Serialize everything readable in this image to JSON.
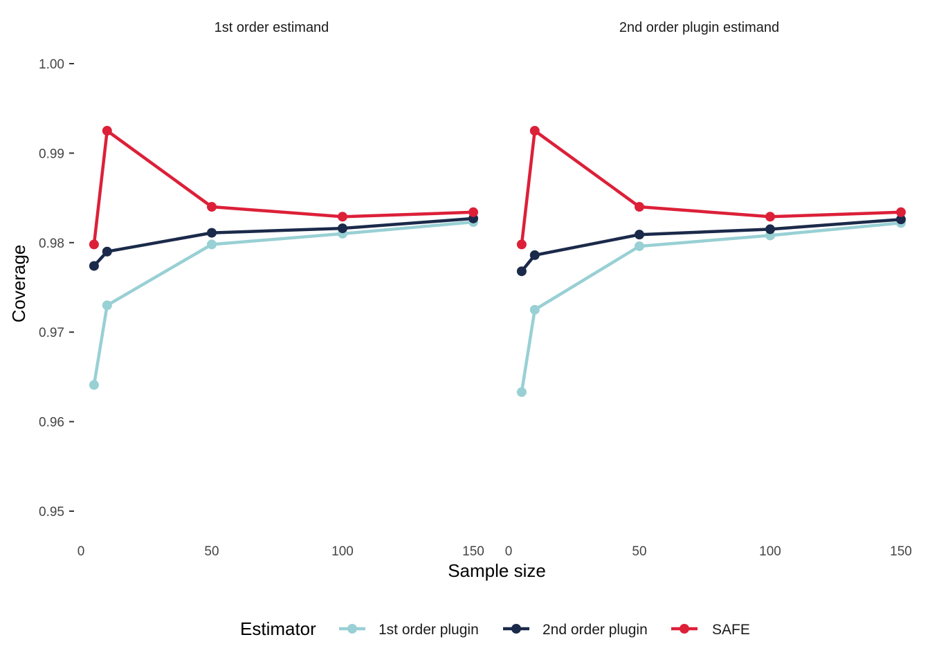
{
  "chart_data": {
    "type": "line",
    "xlabel": "Sample size",
    "ylabel": "Coverage",
    "xlim": [
      0,
      150
    ],
    "ylim": [
      0.95,
      1.0
    ],
    "x_ticks": [
      0,
      50,
      100,
      150
    ],
    "x_tick_labels": [
      "0",
      "50",
      "100",
      "150"
    ],
    "y_ticks": [
      0.95,
      0.96,
      0.97,
      0.98,
      0.99,
      1.0
    ],
    "y_tick_labels": [
      "0.95",
      "0.96",
      "0.97",
      "0.98",
      "0.99",
      "1.00"
    ],
    "grid": false,
    "legend": {
      "title": "Estimator",
      "placement": "bottom",
      "entries": [
        {
          "name": "1st order plugin",
          "color": "#98D0D4"
        },
        {
          "name": "2nd order plugin",
          "color": "#1B2A4A"
        },
        {
          "name": "SAFE",
          "color": "#DC2038"
        }
      ]
    },
    "panels": [
      {
        "title": "1st order estimand",
        "x": [
          5,
          10,
          50,
          100,
          150
        ],
        "series": [
          {
            "name": "1st order plugin",
            "values": [
              0.9641,
              0.973,
              0.9798,
              0.981,
              0.9823
            ]
          },
          {
            "name": "2nd order plugin",
            "values": [
              0.9774,
              0.979,
              0.9811,
              0.9816,
              0.9827
            ]
          },
          {
            "name": "SAFE",
            "values": [
              0.9798,
              0.9925,
              0.984,
              0.9829,
              0.9834
            ]
          }
        ]
      },
      {
        "title": "2nd order plugin estimand",
        "x": [
          5,
          10,
          50,
          100,
          150
        ],
        "series": [
          {
            "name": "1st order plugin",
            "values": [
              0.9633,
              0.9725,
              0.9796,
              0.9808,
              0.9822
            ]
          },
          {
            "name": "2nd order plugin",
            "values": [
              0.9768,
              0.9786,
              0.9809,
              0.9815,
              0.9826
            ]
          },
          {
            "name": "SAFE",
            "values": [
              0.9798,
              0.9925,
              0.984,
              0.9829,
              0.9834
            ]
          }
        ]
      }
    ]
  }
}
